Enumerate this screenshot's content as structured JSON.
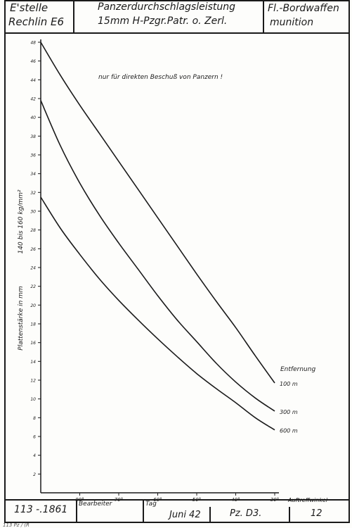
{
  "header": {
    "office_line1": "E'stelle",
    "office_line2": "Rechlin E6",
    "title_line1": "Panzerdurchschlagsleistung",
    "title_line2": "15mm H-Pzgr.Patr. o. Zerl.",
    "category_line1": "Fl.-Bordwaffen",
    "category_line2": "munition"
  },
  "footer": {
    "sheet_number": "113 -.1861",
    "editor_label": "Bearbeiter",
    "date_label": "Tag",
    "date_value": "Juni 42",
    "code_value": "Pz. D3.",
    "page_value": "12",
    "bottom_strip": "113 Pz / (R"
  },
  "chart_data": {
    "type": "line",
    "note": "nur für direkten Beschuß von Panzern !",
    "ylabel": "Plattenstärke in mm",
    "ylabel_extra": "140 bis 160 kg/mm²",
    "xlabel": "Auftreffwinkel",
    "legend_title": "Entfernung",
    "xlim": [
      90,
      30
    ],
    "ylim": [
      0,
      48
    ],
    "x_ticks": [
      80,
      70,
      60,
      50,
      40,
      30
    ],
    "x_tick_labels": [
      "80°",
      "70°",
      "60°",
      "50°",
      "40°",
      "30°"
    ],
    "y_ticks": [
      2,
      4,
      6,
      8,
      10,
      12,
      14,
      16,
      18,
      20,
      22,
      24,
      26,
      28,
      30,
      32,
      34,
      36,
      38,
      40,
      42,
      44,
      46,
      48
    ],
    "series": [
      {
        "name": "100 m",
        "x": [
          90,
          85,
          80,
          75,
          70,
          65,
          60,
          55,
          50,
          45,
          40,
          35,
          30
        ],
        "y": [
          48.0,
          44.5,
          41.3,
          38.3,
          35.3,
          32.3,
          29.3,
          26.3,
          23.3,
          20.4,
          17.6,
          14.6,
          11.7
        ]
      },
      {
        "name": "300 m",
        "x": [
          90,
          85,
          80,
          75,
          70,
          65,
          60,
          55,
          50,
          45,
          40,
          35,
          30
        ],
        "y": [
          41.8,
          37.0,
          33.0,
          29.6,
          26.6,
          23.8,
          21.0,
          18.4,
          16.1,
          13.8,
          11.8,
          10.1,
          8.7
        ]
      },
      {
        "name": "600 m",
        "x": [
          90,
          85,
          80,
          75,
          70,
          65,
          60,
          55,
          50,
          45,
          40,
          35,
          30
        ],
        "y": [
          31.5,
          28.2,
          25.4,
          22.8,
          20.5,
          18.4,
          16.4,
          14.5,
          12.7,
          11.1,
          9.6,
          8.0,
          6.7
        ]
      }
    ]
  }
}
